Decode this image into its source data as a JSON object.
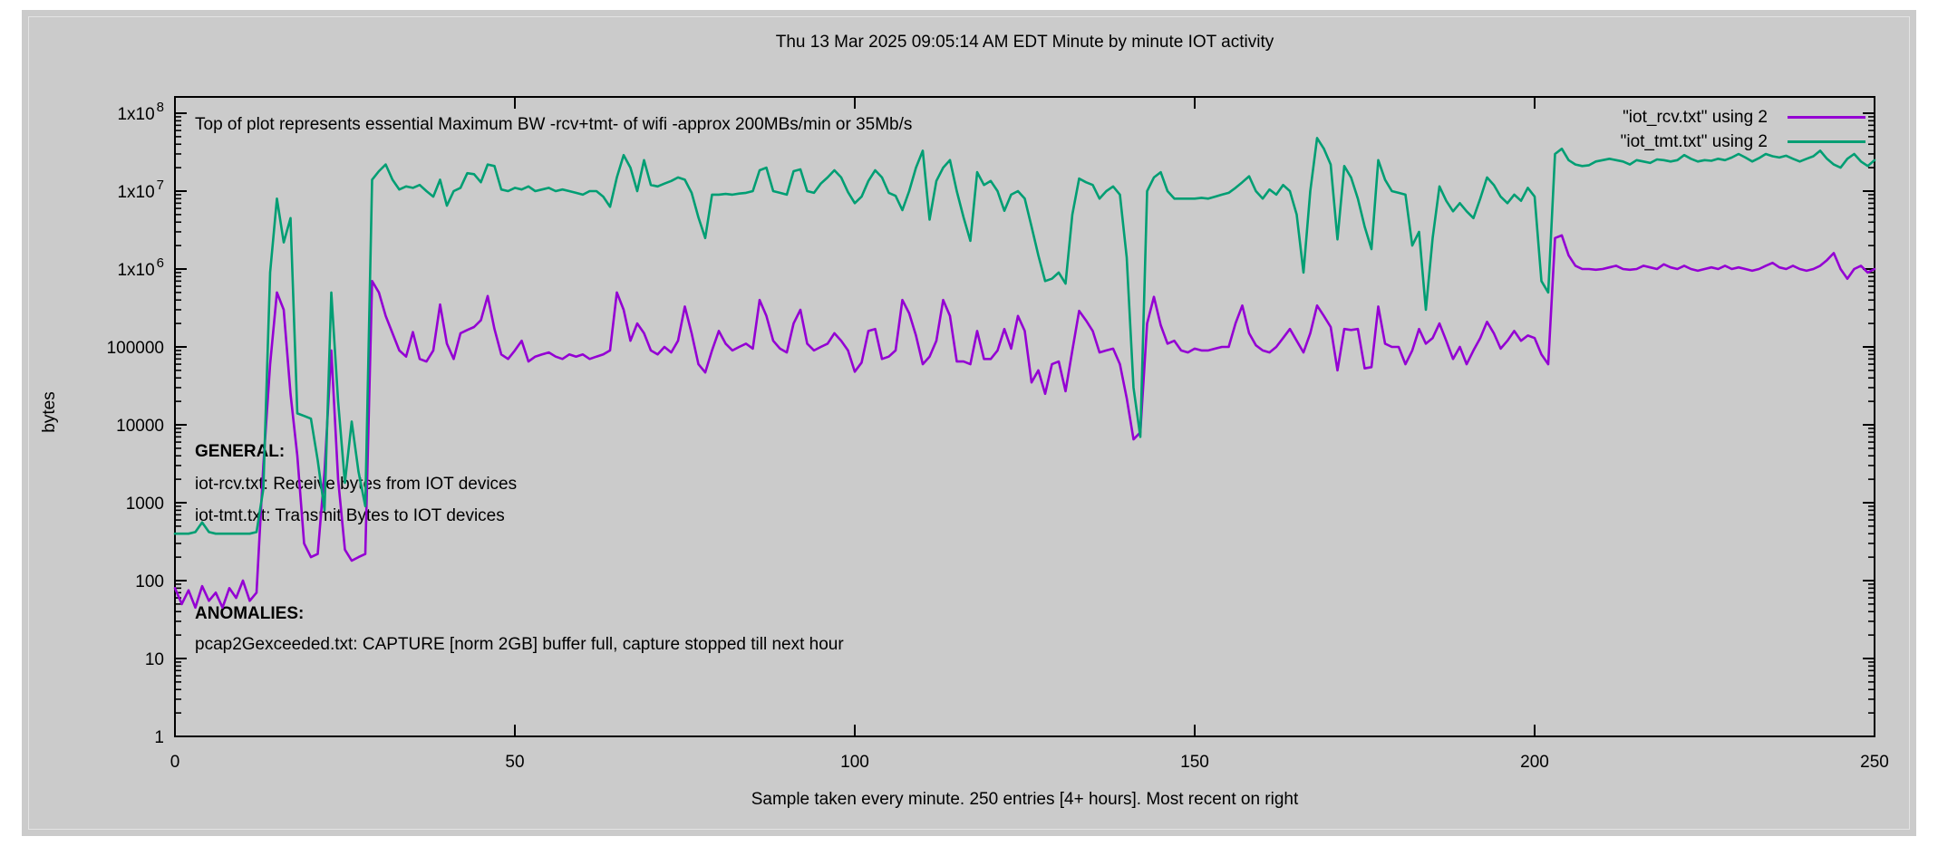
{
  "window": {
    "canvas_color": "#cbcbcb",
    "page_background": "#ffffff"
  },
  "annotations": {
    "top_note": "Top of plot represents essential Maximum BW -rcv+tmt- of wifi -approx 200MBs/min or 35Mb/s",
    "general": {
      "heading": "GENERAL:",
      "line1": "iot-rcv.txt: Receive bytes from IOT devices",
      "line2": "iot-tmt.txt: Transmit Bytes to IOT devices"
    },
    "anomalies": {
      "heading": "ANOMALIES:",
      "line1": "pcap2Gexceeded.txt: CAPTURE [norm 2GB] buffer full, capture stopped till next hour"
    }
  },
  "chart_data": {
    "type": "line",
    "title": "Thu 13 Mar 2025 09:05:14 AM EDT Minute by minute IOT activity",
    "xlabel": "Sample taken every minute. 250 entries [4+ hours]. Most recent on right",
    "ylabel": "bytes",
    "x_range": [
      0,
      250
    ],
    "y_scale": "log",
    "y_range": [
      1,
      100000000
    ],
    "grid": false,
    "legend_position": "top-right-inside",
    "x_ticks": [
      0,
      50,
      100,
      150,
      200,
      250
    ],
    "y_ticks": [
      1,
      10,
      100,
      1000,
      10000,
      100000,
      1000000,
      10000000,
      100000000
    ],
    "y_tick_labels": [
      "1",
      "10",
      "100",
      "1000",
      "10000",
      "100000",
      "1x10^6",
      "1x10^7",
      "1x10^8"
    ],
    "series": [
      {
        "name": "\"iot_rcv.txt\" using 2",
        "color": "#9400d3",
        "x_step": 1,
        "values": [
          80,
          50,
          75,
          45,
          85,
          55,
          70,
          45,
          80,
          60,
          100,
          55,
          70,
          3000,
          60000,
          500000,
          300000,
          25000,
          4000,
          300,
          200,
          220,
          2500,
          90000,
          2000,
          250,
          180,
          200,
          220,
          700000,
          500000,
          250000,
          150000,
          90000,
          75000,
          155000,
          70000,
          65000,
          90000,
          350000,
          110000,
          70000,
          150000,
          165000,
          180000,
          220000,
          450000,
          170000,
          80000,
          70000,
          90000,
          120000,
          65000,
          75000,
          80000,
          85000,
          75000,
          70000,
          80000,
          75000,
          80000,
          70000,
          75000,
          80000,
          90000,
          500000,
          300000,
          120000,
          200000,
          150000,
          90000,
          80000,
          100000,
          85000,
          120000,
          330000,
          150000,
          60000,
          47000,
          90000,
          160000,
          110000,
          90000,
          100000,
          110000,
          95000,
          400000,
          250000,
          120000,
          95000,
          85000,
          200000,
          300000,
          110000,
          90000,
          100000,
          110000,
          150000,
          120000,
          90000,
          48000,
          63000,
          160000,
          170000,
          70000,
          75000,
          90000,
          400000,
          270000,
          140000,
          60000,
          75000,
          120000,
          400000,
          250000,
          65000,
          65000,
          60000,
          160000,
          70000,
          70000,
          90000,
          170000,
          95000,
          250000,
          160000,
          35000,
          50000,
          25000,
          60000,
          65000,
          27000,
          90000,
          290000,
          220000,
          160000,
          85000,
          90000,
          95000,
          60000,
          22000,
          6500,
          8000,
          200000,
          440000,
          190000,
          110000,
          120000,
          90000,
          85000,
          95000,
          90000,
          90000,
          95000,
          100000,
          100000,
          200000,
          340000,
          150000,
          105000,
          90000,
          85000,
          100000,
          130000,
          170000,
          120000,
          85000,
          150000,
          340000,
          250000,
          180000,
          50000,
          170000,
          165000,
          170000,
          53000,
          55000,
          330000,
          110000,
          100000,
          100000,
          60000,
          90000,
          170000,
          110000,
          130000,
          200000,
          120000,
          70000,
          100000,
          60000,
          90000,
          130000,
          210000,
          150000,
          95000,
          120000,
          160000,
          120000,
          140000,
          130000,
          80000,
          60000,
          2500000,
          2700000,
          1500000,
          1100000,
          1000000,
          1000000,
          980000,
          1000000,
          1050000,
          1100000,
          1000000,
          980000,
          1000000,
          1100000,
          1050000,
          1000000,
          1150000,
          1050000,
          1000000,
          1100000,
          1000000,
          950000,
          1000000,
          1050000,
          1000000,
          1100000,
          1000000,
          1050000,
          1000000,
          950000,
          1000000,
          1100000,
          1200000,
          1050000,
          1000000,
          1100000,
          1000000,
          950000,
          1000000,
          1100000,
          1300000,
          1600000,
          1000000,
          750000,
          1000000,
          1100000,
          900000,
          1000000
        ]
      },
      {
        "name": "\"iot_tmt.txt\" using 2",
        "color": "#009e73",
        "x_step": 1,
        "values": [
          400,
          400,
          400,
          420,
          560,
          420,
          400,
          400,
          400,
          400,
          400,
          400,
          420,
          1500,
          900000,
          8000000,
          2200000,
          4500000,
          14000,
          13000,
          12000,
          3500,
          800,
          500000,
          20000,
          1800,
          11000,
          2500,
          900,
          14000000,
          18000000,
          22000000,
          14000000,
          10500000,
          11500000,
          11000000,
          12000000,
          10000000,
          8500000,
          14000000,
          6500000,
          10000000,
          11000000,
          17000000,
          16500000,
          13000000,
          22000000,
          21000000,
          10500000,
          10000000,
          11000000,
          10500000,
          11500000,
          10000000,
          10500000,
          11000000,
          10000000,
          10500000,
          10000000,
          9500000,
          9000000,
          10000000,
          10000000,
          8500000,
          6300000,
          15000000,
          29000000,
          20000000,
          10000000,
          25000000,
          12000000,
          11500000,
          12500000,
          13500000,
          15000000,
          14000000,
          9500000,
          4600000,
          2500000,
          9000000,
          9000000,
          9200000,
          9000000,
          9300000,
          9500000,
          10000000,
          18500000,
          20000000,
          10000000,
          9500000,
          9000000,
          18000000,
          19000000,
          10000000,
          9500000,
          12500000,
          15000000,
          18500000,
          15000000,
          9700000,
          7000000,
          8500000,
          13500000,
          18500000,
          15000000,
          9500000,
          8700000,
          5700000,
          10000000,
          20000000,
          33000000,
          4300000,
          13500000,
          20000000,
          25000000,
          10000000,
          4600000,
          2300000,
          17500000,
          12000000,
          13500000,
          10000000,
          5600000,
          9000000,
          10000000,
          8000000,
          3500000,
          1500000,
          700000,
          750000,
          900000,
          650000,
          5000000,
          14500000,
          13000000,
          12000000,
          8000000,
          10000000,
          11500000,
          9000000,
          1400000,
          30000,
          7000,
          10000000,
          15000000,
          17500000,
          10000000,
          8000000,
          8000000,
          8000000,
          8000000,
          8200000,
          8000000,
          8500000,
          9000000,
          9500000,
          11000000,
          13000000,
          15500000,
          10000000,
          8000000,
          10500000,
          9000000,
          12000000,
          10000000,
          5000000,
          900000,
          10000000,
          48000000,
          35000000,
          22000000,
          2400000,
          21000000,
          15000000,
          8000000,
          3500000,
          1800000,
          25000000,
          14000000,
          10000000,
          9500000,
          9000000,
          2000000,
          3000000,
          300000,
          2500000,
          11500000,
          7500000,
          5500000,
          7000000,
          5500000,
          4500000,
          8000000,
          15000000,
          12000000,
          8500000,
          7000000,
          9000000,
          7500000,
          11000000,
          8500000,
          700000,
          500000,
          30000000,
          35000000,
          25000000,
          22000000,
          21000000,
          21500000,
          24000000,
          25000000,
          26000000,
          25000000,
          24000000,
          22000000,
          25000000,
          24000000,
          23000000,
          25500000,
          25000000,
          24000000,
          25000000,
          29000000,
          26000000,
          24000000,
          25000000,
          24500000,
          26000000,
          25000000,
          27000000,
          30000000,
          27000000,
          24000000,
          26500000,
          30000000,
          28000000,
          27000000,
          28500000,
          26000000,
          24000000,
          26000000,
          28000000,
          33000000,
          26000000,
          22000000,
          20000000,
          26000000,
          30000000,
          24000000,
          21000000,
          25000000
        ]
      }
    ]
  }
}
